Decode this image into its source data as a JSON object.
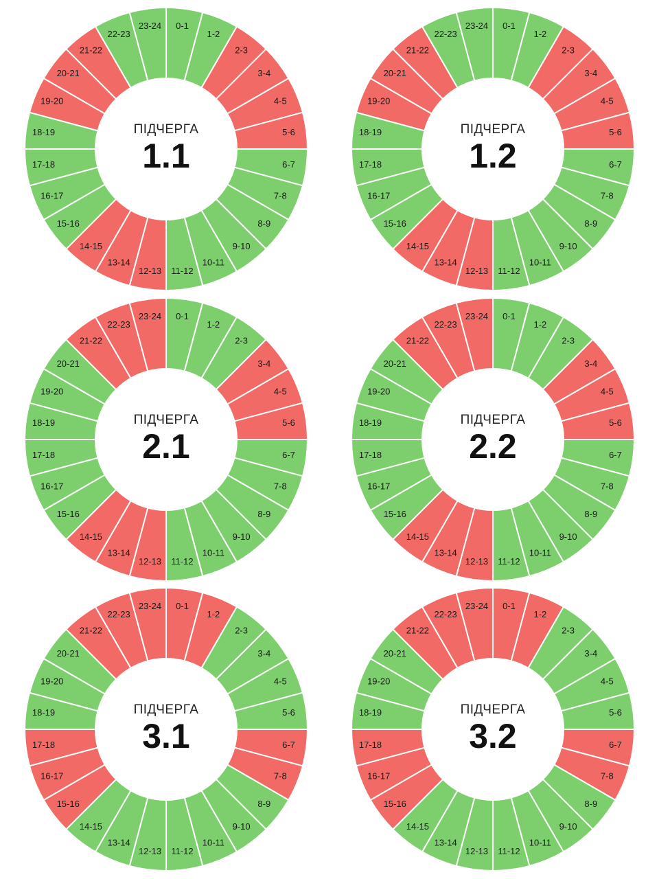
{
  "colors": {
    "on": "#7ccf6c",
    "off": "#f26a66",
    "separator": "#ffffff",
    "background": "#ffffff"
  },
  "hour_labels": [
    "0-1",
    "1-2",
    "2-3",
    "3-4",
    "4-5",
    "5-6",
    "6-7",
    "7-8",
    "8-9",
    "9-10",
    "10-11",
    "11-12",
    "12-13",
    "13-14",
    "14-15",
    "15-16",
    "16-17",
    "17-18",
    "18-19",
    "19-20",
    "20-21",
    "21-22",
    "22-23",
    "23-24"
  ],
  "chart_data": [
    {
      "type": "pie",
      "title": "1.1",
      "center_label": "ПІДЧЕРГА",
      "categories": [
        "0-1",
        "1-2",
        "2-3",
        "3-4",
        "4-5",
        "5-6",
        "6-7",
        "7-8",
        "8-9",
        "9-10",
        "10-11",
        "11-12",
        "12-13",
        "13-14",
        "14-15",
        "15-16",
        "16-17",
        "17-18",
        "18-19",
        "19-20",
        "20-21",
        "21-22",
        "22-23",
        "23-24"
      ],
      "values": [
        "on",
        "on",
        "off",
        "off",
        "off",
        "off",
        "on",
        "on",
        "on",
        "on",
        "on",
        "on",
        "off",
        "off",
        "off",
        "on",
        "on",
        "on",
        "on",
        "off",
        "off",
        "off",
        "on",
        "on"
      ]
    },
    {
      "type": "pie",
      "title": "1.2",
      "center_label": "ПІДЧЕРГА",
      "categories": [
        "0-1",
        "1-2",
        "2-3",
        "3-4",
        "4-5",
        "5-6",
        "6-7",
        "7-8",
        "8-9",
        "9-10",
        "10-11",
        "11-12",
        "12-13",
        "13-14",
        "14-15",
        "15-16",
        "16-17",
        "17-18",
        "18-19",
        "19-20",
        "20-21",
        "21-22",
        "22-23",
        "23-24"
      ],
      "values": [
        "on",
        "on",
        "off",
        "off",
        "off",
        "off",
        "on",
        "on",
        "on",
        "on",
        "on",
        "on",
        "off",
        "off",
        "off",
        "on",
        "on",
        "on",
        "on",
        "off",
        "off",
        "off",
        "on",
        "on"
      ]
    },
    {
      "type": "pie",
      "title": "2.1",
      "center_label": "ПІДЧЕРГА",
      "categories": [
        "0-1",
        "1-2",
        "2-3",
        "3-4",
        "4-5",
        "5-6",
        "6-7",
        "7-8",
        "8-9",
        "9-10",
        "10-11",
        "11-12",
        "12-13",
        "13-14",
        "14-15",
        "15-16",
        "16-17",
        "17-18",
        "18-19",
        "19-20",
        "20-21",
        "21-22",
        "22-23",
        "23-24"
      ],
      "values": [
        "on",
        "on",
        "on",
        "off",
        "off",
        "off",
        "on",
        "on",
        "on",
        "on",
        "on",
        "on",
        "off",
        "off",
        "off",
        "on",
        "on",
        "on",
        "on",
        "on",
        "on",
        "off",
        "off",
        "off"
      ]
    },
    {
      "type": "pie",
      "title": "2.2",
      "center_label": "ПІДЧЕРГА",
      "categories": [
        "0-1",
        "1-2",
        "2-3",
        "3-4",
        "4-5",
        "5-6",
        "6-7",
        "7-8",
        "8-9",
        "9-10",
        "10-11",
        "11-12",
        "12-13",
        "13-14",
        "14-15",
        "15-16",
        "16-17",
        "17-18",
        "18-19",
        "19-20",
        "20-21",
        "21-22",
        "22-23",
        "23-24"
      ],
      "values": [
        "on",
        "on",
        "on",
        "off",
        "off",
        "off",
        "on",
        "on",
        "on",
        "on",
        "on",
        "on",
        "off",
        "off",
        "off",
        "on",
        "on",
        "on",
        "on",
        "on",
        "on",
        "off",
        "off",
        "off"
      ]
    },
    {
      "type": "pie",
      "title": "3.1",
      "center_label": "ПІДЧЕРГА",
      "categories": [
        "0-1",
        "1-2",
        "2-3",
        "3-4",
        "4-5",
        "5-6",
        "6-7",
        "7-8",
        "8-9",
        "9-10",
        "10-11",
        "11-12",
        "12-13",
        "13-14",
        "14-15",
        "15-16",
        "16-17",
        "17-18",
        "18-19",
        "19-20",
        "20-21",
        "21-22",
        "22-23",
        "23-24"
      ],
      "values": [
        "off",
        "off",
        "on",
        "on",
        "on",
        "on",
        "off",
        "off",
        "on",
        "on",
        "on",
        "on",
        "on",
        "on",
        "on",
        "off",
        "off",
        "off",
        "on",
        "on",
        "on",
        "off",
        "off",
        "off"
      ]
    },
    {
      "type": "pie",
      "title": "3.2",
      "center_label": "ПІДЧЕРГА",
      "categories": [
        "0-1",
        "1-2",
        "2-3",
        "3-4",
        "4-5",
        "5-6",
        "6-7",
        "7-8",
        "8-9",
        "9-10",
        "10-11",
        "11-12",
        "12-13",
        "13-14",
        "14-15",
        "15-16",
        "16-17",
        "17-18",
        "18-19",
        "19-20",
        "20-21",
        "21-22",
        "22-23",
        "23-24"
      ],
      "values": [
        "off",
        "off",
        "on",
        "on",
        "on",
        "on",
        "off",
        "off",
        "on",
        "on",
        "on",
        "on",
        "on",
        "on",
        "on",
        "off",
        "off",
        "off",
        "on",
        "on",
        "on",
        "off",
        "off",
        "off"
      ]
    }
  ]
}
